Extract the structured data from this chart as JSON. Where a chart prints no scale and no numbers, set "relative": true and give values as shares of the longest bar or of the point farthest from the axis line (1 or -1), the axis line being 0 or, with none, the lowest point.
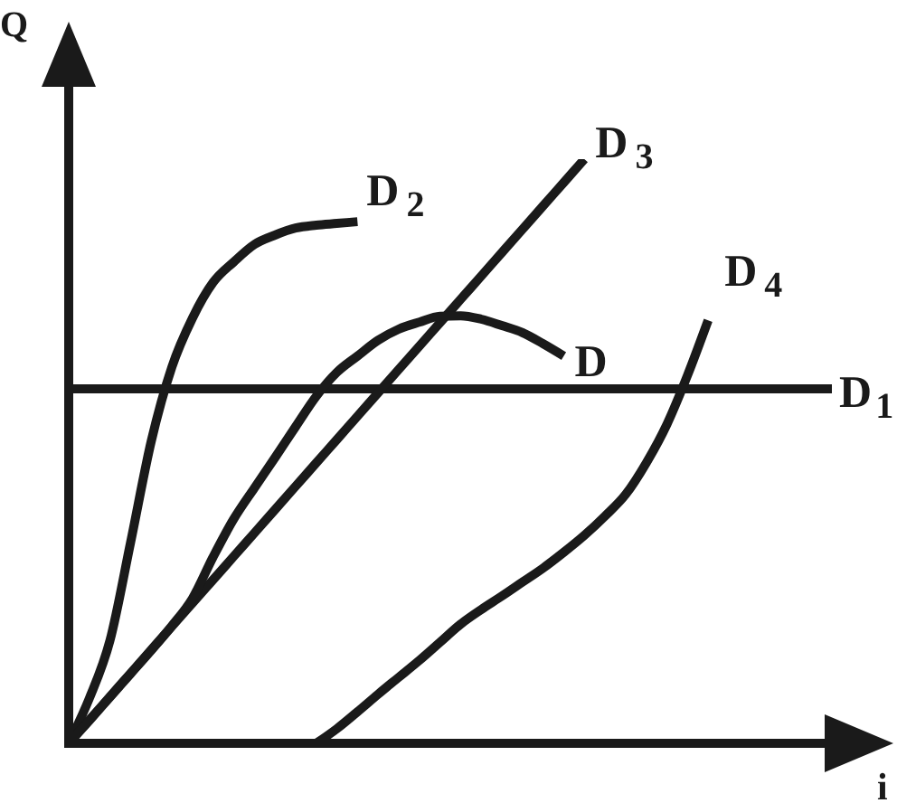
{
  "chart_data": {
    "type": "line",
    "relative": true,
    "xlabel": "i",
    "ylabel": "Q",
    "tick_labels": false,
    "marker": "none",
    "line_style": "solid",
    "categories": [
      null,
      null,
      null,
      null,
      null,
      null,
      null,
      null,
      null,
      null,
      null,
      null,
      null,
      null,
      null,
      null,
      null,
      null,
      null,
      null,
      null,
      null,
      null,
      null,
      null,
      null,
      null,
      null,
      null,
      null,
      null,
      null,
      null,
      null,
      null,
      null,
      null,
      null
    ],
    "series": [
      {
        "name": "D$_{1}$",
        "color": "#1a1a1a",
        "values": [
          0.607,
          0.607,
          0.607,
          0.607,
          0.607,
          0.607,
          0.607,
          0.607,
          0.607,
          0.607,
          0.607,
          0.607,
          0.607,
          0.607,
          0.607,
          0.607,
          0.607,
          0.607,
          0.607,
          0.607,
          0.607,
          0.607,
          0.607,
          0.607,
          0.607,
          0.607,
          0.607,
          0.607,
          0.607,
          0.607,
          0.607,
          0.607,
          0.607,
          0.607,
          0.607,
          0.607,
          0.607,
          0.607
        ]
      },
      {
        "name": "D$_{2}$",
        "color": "#1a1a1a",
        "values": [
          0,
          0.077,
          0.176,
          0.344,
          0.517,
          0.644,
          0.728,
          0.789,
          0.824,
          0.854,
          0.87,
          0.882,
          0.887,
          0.89,
          0.893,
          null,
          null,
          null,
          null,
          null,
          null,
          null,
          null,
          null,
          null,
          null,
          null,
          null,
          null,
          null,
          null,
          null,
          null,
          null,
          null,
          null,
          null,
          null
        ]
      },
      {
        "name": "D$_{3}$",
        "color": "#1a1a1a",
        "values": [
          0,
          0.04,
          0.08,
          0.12,
          0.16,
          0.2,
          0.24,
          0.28,
          0.32,
          0.36,
          0.4,
          0.44,
          0.48,
          0.52,
          0.56,
          0.6,
          0.64,
          0.68,
          0.72,
          0.76,
          0.8,
          0.84,
          0.88,
          0.92,
          0.96,
          1,
          null,
          null,
          null,
          null,
          null,
          null,
          null,
          null,
          null,
          null,
          null,
          null
        ]
      },
      {
        "name": "D",
        "color": "#1a1a1a",
        "values": [
          0,
          0.039,
          0.079,
          0.119,
          0.159,
          0.201,
          0.248,
          0.319,
          0.384,
          0.437,
          0.489,
          0.542,
          0.594,
          0.635,
          0.663,
          0.69,
          0.709,
          0.721,
          0.731,
          0.732,
          0.726,
          0.715,
          0.703,
          0.684,
          0.663,
          null,
          null,
          null,
          null,
          null,
          null,
          null,
          null,
          null,
          null,
          null,
          null,
          null
        ]
      },
      {
        "name": "D$_{4}$",
        "color": "#1a1a1a",
        "values": [
          null,
          null,
          null,
          null,
          null,
          null,
          null,
          null,
          null,
          null,
          null,
          null,
          0,
          0.025,
          0.054,
          0.084,
          0.113,
          0.142,
          0.173,
          0.204,
          0.229,
          0.252,
          0.276,
          0.3,
          0.327,
          0.356,
          0.389,
          0.426,
          0.48,
          0.546,
          0.63,
          0.724,
          null,
          null,
          null,
          null,
          null,
          null
        ]
      }
    ]
  }
}
